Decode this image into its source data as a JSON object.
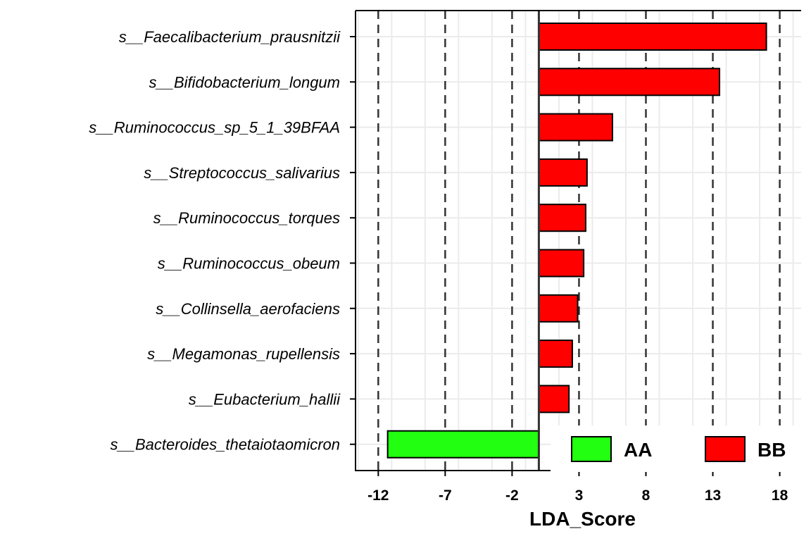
{
  "chart_data": {
    "type": "bar",
    "orientation": "horizontal",
    "categories": [
      "s__Faecalibacterium_prausnitzii",
      "s__Bifidobacterium_longum",
      "s__Ruminococcus_sp_5_1_39BFAA",
      "s__Streptococcus_salivarius",
      "s__Ruminococcus_torques",
      "s__Ruminococcus_obeum",
      "s__Collinsella_aerofaciens",
      "s__Megamonas_rupellensis",
      "s__Eubacterium_hallii",
      "s__Bacteroides_thetaiotaomicron"
    ],
    "values": [
      17.0,
      13.5,
      5.5,
      3.6,
      3.5,
      3.35,
      2.9,
      2.5,
      2.25,
      -11.3
    ],
    "groups": [
      "BB",
      "BB",
      "BB",
      "BB",
      "BB",
      "BB",
      "BB",
      "BB",
      "BB",
      "AA"
    ],
    "xlabel": "LDA_Score",
    "ylabel": "",
    "xlim": [
      -13.7,
      19.6
    ],
    "xticks": [
      -12,
      -7,
      -2,
      3,
      8,
      13,
      18
    ],
    "xtick_labels": [
      "-12",
      "-7",
      "-2",
      "3",
      "8",
      "13",
      "18"
    ],
    "dashed_lines": [
      -12,
      -7,
      -2,
      3,
      8,
      13,
      18
    ],
    "zero_line": 0,
    "grid": true,
    "legend": {
      "position": "bottom-right",
      "entries": [
        {
          "label": "AA",
          "color": "#22ff11"
        },
        {
          "label": "BB",
          "color": "#ff0000"
        }
      ]
    },
    "colors": {
      "AA": "#22ff11",
      "BB": "#ff0000"
    }
  }
}
